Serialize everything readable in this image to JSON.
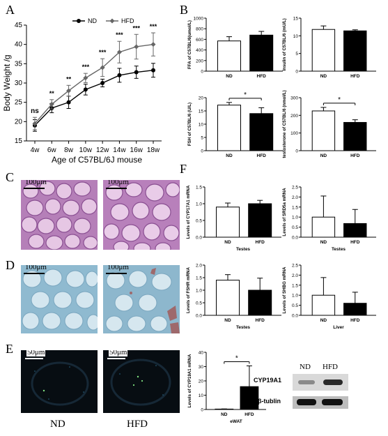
{
  "panels": {
    "A": "A",
    "B": "B",
    "C": "C",
    "D": "D",
    "E": "E",
    "F": "F"
  },
  "chart_data": [
    {
      "id": "A",
      "type": "line",
      "xlabel": "Age of C57BL/6J mouse",
      "ylabel": "Body Weight /g",
      "categories": [
        "4w",
        "6w",
        "8w",
        "10w",
        "12w",
        "14w",
        "16w",
        "18w"
      ],
      "ylim": [
        15,
        45
      ],
      "yticks": [
        15,
        20,
        25,
        30,
        35,
        40,
        45
      ],
      "series": [
        {
          "name": "ND",
          "values": [
            19,
            23.5,
            25,
            28.3,
            30,
            32,
            32.8,
            33.3
          ],
          "err": [
            1.5,
            1.2,
            1.6,
            1.4,
            1.0,
            1.8,
            1.6,
            1.8
          ]
        },
        {
          "name": "HFD",
          "values": [
            19.5,
            24.5,
            28,
            31.3,
            34,
            38,
            39.4,
            40
          ],
          "err": [
            1.6,
            1.2,
            1.4,
            1.2,
            2.3,
            2.8,
            3.2,
            3.0
          ]
        }
      ],
      "significance": [
        "ns",
        "**",
        "**",
        "***",
        "***",
        "***",
        "***",
        "***"
      ]
    },
    {
      "id": "B1",
      "type": "bar",
      "ylabel": "FFA of C57BL/6(umol/L)",
      "categories": [
        "ND",
        "HFD"
      ],
      "values": [
        570,
        680
      ],
      "err": [
        80,
        70
      ],
      "ylim": [
        0,
        1000
      ],
      "yticks": [
        0,
        200,
        400,
        600,
        800,
        1000
      ]
    },
    {
      "id": "B2",
      "type": "bar",
      "ylabel": "Insulin of C57BL/6 (mU/L)",
      "categories": [
        "ND",
        "HFD"
      ],
      "values": [
        11.8,
        11.4
      ],
      "err": [
        1.0,
        0.3
      ],
      "ylim": [
        0,
        15
      ],
      "yticks": [
        0,
        5,
        10,
        15
      ]
    },
    {
      "id": "B3",
      "type": "bar",
      "ylabel": "FSH of C57BL/6 (U/L)",
      "categories": [
        "ND",
        "HFD"
      ],
      "values": [
        17.2,
        14.0
      ],
      "err": [
        1.0,
        2.2
      ],
      "ylim": [
        0,
        20
      ],
      "yticks": [
        0,
        5,
        10,
        15,
        20
      ],
      "significance": "*"
    },
    {
      "id": "B4",
      "type": "bar",
      "ylabel": "testosterone of C57BL/6 (nmol/L)",
      "categories": [
        "ND",
        "HFD"
      ],
      "values": [
        225,
        160
      ],
      "err": [
        20,
        15
      ],
      "ylim": [
        0,
        300
      ],
      "yticks": [
        0,
        100,
        200,
        300
      ],
      "significance": "*"
    },
    {
      "id": "F1",
      "type": "bar",
      "ylabel": "Levels of CYP17A1 mRNA",
      "xlabel": "Testes",
      "categories": [
        "ND",
        "HFD"
      ],
      "values": [
        0.9,
        1.0
      ],
      "err": [
        0.12,
        0.1
      ],
      "ylim": [
        0,
        1.5
      ],
      "yticks": [
        0.0,
        0.5,
        1.0,
        1.5
      ]
    },
    {
      "id": "F2",
      "type": "bar",
      "ylabel": "Levels of SRD5a mRNA",
      "xlabel": "Testes",
      "categories": [
        "ND",
        "HFD"
      ],
      "values": [
        1.0,
        0.68
      ],
      "err": [
        1.05,
        0.7
      ],
      "ylim": [
        0,
        2.5
      ],
      "yticks": [
        0.0,
        0.5,
        1.0,
        1.5,
        2.0,
        2.5
      ]
    },
    {
      "id": "F3",
      "type": "bar",
      "ylabel": "Levels of FSHR mRNA",
      "xlabel": "Testes",
      "categories": [
        "ND",
        "HFD"
      ],
      "values": [
        1.4,
        1.0
      ],
      "err": [
        0.22,
        0.48
      ],
      "ylim": [
        0,
        2.0
      ],
      "yticks": [
        0.0,
        0.5,
        1.0,
        1.5,
        2.0
      ]
    },
    {
      "id": "F4",
      "type": "bar",
      "ylabel": "Levels of SHBG mRNA",
      "xlabel": "Liver",
      "categories": [
        "ND",
        "HFD"
      ],
      "values": [
        1.0,
        0.6
      ],
      "err": [
        0.88,
        0.55
      ],
      "ylim": [
        0,
        2.5
      ],
      "yticks": [
        0.0,
        0.5,
        1.0,
        1.5,
        2.0,
        2.5
      ]
    },
    {
      "id": "E1",
      "type": "bar",
      "ylabel": "Levels of CYP19A1 mRNA",
      "xlabel": "eWAT",
      "categories": [
        "ND",
        "HFD"
      ],
      "values": [
        0.3,
        16
      ],
      "err": [
        0.1,
        14.5
      ],
      "ylim": [
        0,
        40
      ],
      "yticks": [
        0,
        10,
        20,
        30,
        40
      ],
      "significance": "*"
    }
  ],
  "images": {
    "scale_100": "100μm",
    "scale_50": "50μm",
    "label_nd": "ND",
    "label_hfd": "HFD"
  },
  "western": {
    "nd": "ND",
    "hfd": "HFD",
    "protein1": "CYP19A1",
    "protein2": "β-tublin"
  }
}
